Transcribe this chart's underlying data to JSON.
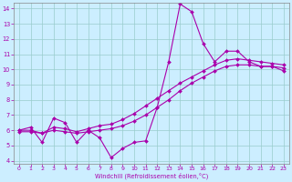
{
  "title": "",
  "xlabel": "Windchill (Refroidissement éolien,°C)",
  "background_color": "#cceeff",
  "line_color": "#aa00aa",
  "grid_color": "#99cccc",
  "xlim": [
    -0.5,
    23.5
  ],
  "ylim": [
    3.8,
    14.4
  ],
  "yticks": [
    4,
    5,
    6,
    7,
    8,
    9,
    10,
    11,
    12,
    13,
    14
  ],
  "xticks": [
    0,
    1,
    2,
    3,
    4,
    5,
    6,
    7,
    8,
    9,
    10,
    11,
    12,
    13,
    14,
    15,
    16,
    17,
    18,
    19,
    20,
    21,
    22,
    23
  ],
  "line1_x": [
    0,
    1,
    2,
    3,
    4,
    5,
    6,
    7,
    8,
    9,
    10,
    11,
    12,
    13,
    14,
    15,
    16,
    17,
    18,
    19,
    20,
    21,
    22,
    23
  ],
  "line1_y": [
    6.0,
    6.2,
    5.2,
    6.8,
    6.5,
    5.2,
    6.0,
    5.5,
    4.2,
    4.8,
    5.2,
    5.3,
    7.5,
    10.5,
    14.3,
    13.8,
    11.7,
    10.5,
    11.2,
    11.2,
    10.5,
    10.2,
    10.2,
    9.9
  ],
  "line2_x": [
    0,
    1,
    2,
    3,
    4,
    5,
    6,
    7,
    8,
    9,
    10,
    11,
    12,
    13,
    14,
    15,
    16,
    17,
    18,
    19,
    20,
    21,
    22,
    23
  ],
  "line2_y": [
    5.9,
    5.9,
    5.8,
    6.0,
    5.9,
    5.8,
    5.9,
    6.0,
    6.1,
    6.3,
    6.6,
    7.0,
    7.5,
    8.0,
    8.6,
    9.1,
    9.5,
    9.9,
    10.2,
    10.3,
    10.3,
    10.2,
    10.2,
    10.1
  ],
  "line3_x": [
    0,
    1,
    2,
    3,
    4,
    5,
    6,
    7,
    8,
    9,
    10,
    11,
    12,
    13,
    14,
    15,
    16,
    17,
    18,
    19,
    20,
    21,
    22,
    23
  ],
  "line3_y": [
    6.0,
    6.0,
    5.8,
    6.2,
    6.1,
    5.9,
    6.1,
    6.3,
    6.4,
    6.7,
    7.1,
    7.6,
    8.1,
    8.6,
    9.1,
    9.5,
    9.9,
    10.3,
    10.6,
    10.7,
    10.6,
    10.5,
    10.4,
    10.3
  ]
}
